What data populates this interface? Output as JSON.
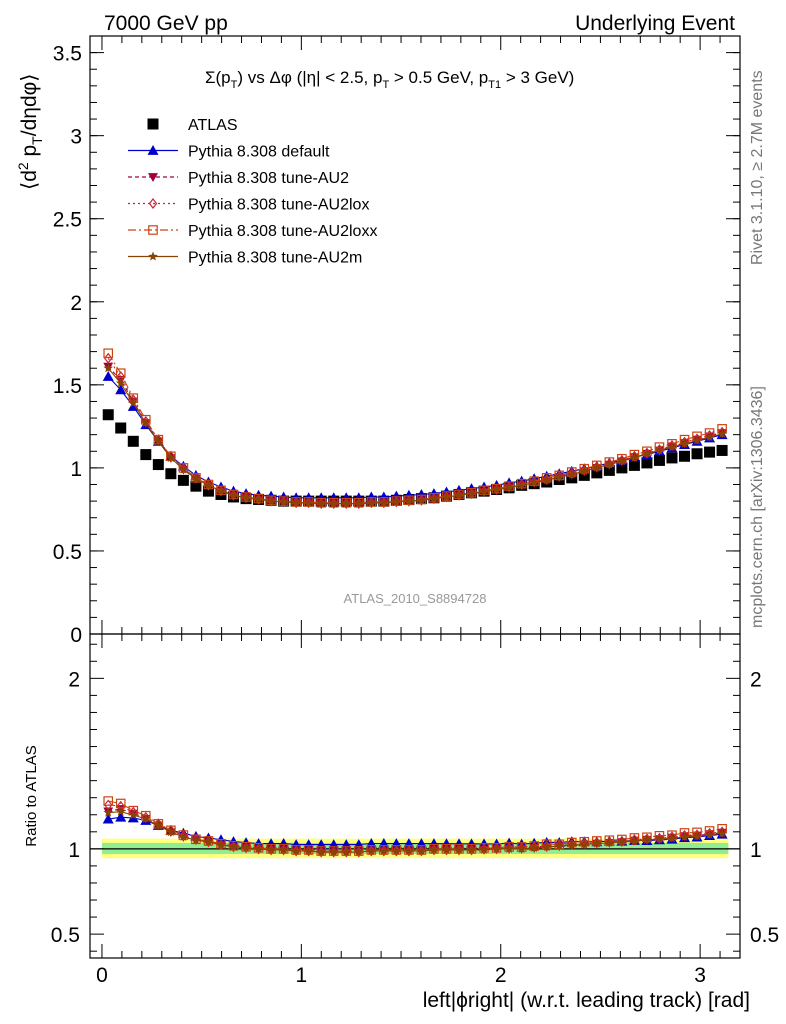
{
  "header": {
    "left": "7000 GeV pp",
    "right": "Underlying Event"
  },
  "side": {
    "rivet": "Rivet 3.1.10, ≥ 2.7M events",
    "mcplots": "mcplots.cern.ch [arXiv:1306.3436]"
  },
  "chart_data": [
    {
      "type": "scatter",
      "title": "Σ(p_T) vs Δφ (|η| < 2.5, p_T > 0.5 GeV, p_T1 > 3 GeV)",
      "title_parts": {
        "sigma": "Σ(p",
        "t1": "T",
        "mid": ") vs Δφ (|η| < 2.5, p",
        "t2": "T",
        "mid2": " > 0.5 GeV, p",
        "t3": "T1",
        "tail": " > 3 GeV)"
      },
      "ylabel": "⟨d² p_T/dηdφ⟩",
      "ylabel_parts": {
        "a": "⟨d",
        "sup": "2",
        "b": " p",
        "sub": "T",
        "c": "/dηdφ⟩"
      },
      "watermark": "ATLAS_2010_S8894728",
      "xlim": [
        -0.06,
        3.2
      ],
      "ylim": [
        0,
        3.6
      ],
      "yticks": [
        "0",
        "0.5",
        "1",
        "1.5",
        "2",
        "2.5",
        "3",
        "3.5"
      ],
      "legend_position": "top-left",
      "x": [
        0.0314,
        0.0942,
        0.1571,
        0.2199,
        0.2827,
        0.3456,
        0.4084,
        0.4712,
        0.5341,
        0.5969,
        0.6597,
        0.7226,
        0.7854,
        0.8482,
        0.9111,
        0.9739,
        1.0367,
        1.0996,
        1.1624,
        1.2252,
        1.2881,
        1.3509,
        1.4137,
        1.4765,
        1.5394,
        1.6022,
        1.665,
        1.7279,
        1.7907,
        1.8535,
        1.9164,
        1.9792,
        2.042,
        2.1049,
        2.1677,
        2.2305,
        2.2934,
        2.3562,
        2.419,
        2.4819,
        2.5447,
        2.6075,
        2.6704,
        2.7332,
        2.796,
        2.8588,
        2.9217,
        2.9845,
        3.0473,
        3.1102
      ],
      "series": [
        {
          "name": "ATLAS",
          "color": "#000000",
          "marker": "square",
          "values": [
            1.32,
            1.24,
            1.16,
            1.08,
            1.02,
            0.965,
            0.925,
            0.89,
            0.86,
            0.84,
            0.825,
            0.815,
            0.81,
            0.805,
            0.8,
            0.8,
            0.8,
            0.8,
            0.8,
            0.8,
            0.8,
            0.8,
            0.8,
            0.805,
            0.81,
            0.815,
            0.82,
            0.83,
            0.84,
            0.85,
            0.86,
            0.87,
            0.88,
            0.895,
            0.905,
            0.915,
            0.93,
            0.94,
            0.955,
            0.97,
            0.985,
            1.0,
            1.015,
            1.03,
            1.045,
            1.06,
            1.07,
            1.085,
            1.095,
            1.105
          ]
        },
        {
          "name": "Pythia 8.308 default",
          "color": "#0000cc",
          "marker": "triangle-up",
          "values": [
            1.55,
            1.47,
            1.37,
            1.26,
            1.16,
            1.07,
            1.01,
            0.955,
            0.915,
            0.885,
            0.86,
            0.845,
            0.835,
            0.83,
            0.825,
            0.82,
            0.82,
            0.82,
            0.82,
            0.82,
            0.82,
            0.825,
            0.825,
            0.83,
            0.835,
            0.84,
            0.845,
            0.855,
            0.865,
            0.875,
            0.885,
            0.895,
            0.91,
            0.92,
            0.935,
            0.95,
            0.965,
            0.98,
            0.995,
            1.01,
            1.03,
            1.045,
            1.065,
            1.08,
            1.1,
            1.12,
            1.14,
            1.16,
            1.18,
            1.2
          ]
        },
        {
          "name": "Pythia 8.308 tune-AU2",
          "color": "#a00040",
          "marker": "triangle-down",
          "values": [
            1.61,
            1.53,
            1.4,
            1.27,
            1.16,
            1.06,
            0.99,
            0.935,
            0.895,
            0.86,
            0.835,
            0.82,
            0.81,
            0.8,
            0.795,
            0.79,
            0.79,
            0.785,
            0.785,
            0.785,
            0.785,
            0.79,
            0.79,
            0.795,
            0.8,
            0.805,
            0.815,
            0.825,
            0.835,
            0.845,
            0.855,
            0.87,
            0.88,
            0.895,
            0.91,
            0.925,
            0.945,
            0.96,
            0.98,
            1.0,
            1.02,
            1.04,
            1.065,
            1.085,
            1.105,
            1.13,
            1.15,
            1.17,
            1.19,
            1.21
          ]
        },
        {
          "name": "Pythia 8.308 tune-AU2lox",
          "color": "#cc2233",
          "marker": "diamond-open",
          "values": [
            1.66,
            1.55,
            1.41,
            1.28,
            1.17,
            1.07,
            0.995,
            0.94,
            0.895,
            0.86,
            0.835,
            0.82,
            0.81,
            0.8,
            0.795,
            0.79,
            0.79,
            0.785,
            0.785,
            0.785,
            0.785,
            0.79,
            0.79,
            0.795,
            0.8,
            0.805,
            0.815,
            0.825,
            0.835,
            0.845,
            0.86,
            0.87,
            0.885,
            0.9,
            0.915,
            0.93,
            0.95,
            0.965,
            0.985,
            1.005,
            1.025,
            1.045,
            1.07,
            1.09,
            1.11,
            1.135,
            1.155,
            1.175,
            1.195,
            1.215
          ]
        },
        {
          "name": "Pythia 8.308 tune-AU2loxx",
          "color": "#cc4411",
          "marker": "square-open",
          "values": [
            1.69,
            1.57,
            1.42,
            1.29,
            1.17,
            1.07,
            1.0,
            0.94,
            0.9,
            0.865,
            0.84,
            0.825,
            0.815,
            0.805,
            0.8,
            0.795,
            0.795,
            0.79,
            0.79,
            0.79,
            0.79,
            0.795,
            0.795,
            0.8,
            0.805,
            0.81,
            0.82,
            0.83,
            0.84,
            0.85,
            0.865,
            0.875,
            0.89,
            0.905,
            0.92,
            0.94,
            0.955,
            0.975,
            0.995,
            1.015,
            1.035,
            1.055,
            1.08,
            1.1,
            1.125,
            1.145,
            1.17,
            1.19,
            1.21,
            1.235
          ]
        },
        {
          "name": "Pythia 8.308 tune-AU2m",
          "color": "#884400",
          "marker": "star",
          "values": [
            1.6,
            1.51,
            1.39,
            1.27,
            1.16,
            1.06,
            0.99,
            0.935,
            0.895,
            0.86,
            0.835,
            0.82,
            0.81,
            0.8,
            0.795,
            0.79,
            0.79,
            0.785,
            0.785,
            0.785,
            0.785,
            0.79,
            0.79,
            0.795,
            0.8,
            0.805,
            0.815,
            0.825,
            0.835,
            0.845,
            0.855,
            0.87,
            0.88,
            0.895,
            0.91,
            0.925,
            0.945,
            0.96,
            0.98,
            1.0,
            1.02,
            1.04,
            1.06,
            1.085,
            1.105,
            1.125,
            1.145,
            1.165,
            1.185,
            1.205
          ]
        }
      ]
    },
    {
      "type": "scatter",
      "title": "",
      "ylabel": "Ratio to ATLAS",
      "xlabel": "left|ϕright| (w.r.t. leading track) [rad]",
      "xlim": [
        -0.06,
        3.2
      ],
      "ylim": [
        0.36,
        2.26
      ],
      "yticks": [
        "0.5",
        "1",
        "2"
      ],
      "xticks": [
        "0",
        "1",
        "2",
        "3"
      ],
      "reference_line": 1,
      "bands": [
        {
          "color": "#ffff80",
          "lo": 0.945,
          "hi": 1.06
        },
        {
          "color": "#90ee90",
          "lo": 0.97,
          "hi": 1.035
        }
      ]
    }
  ]
}
